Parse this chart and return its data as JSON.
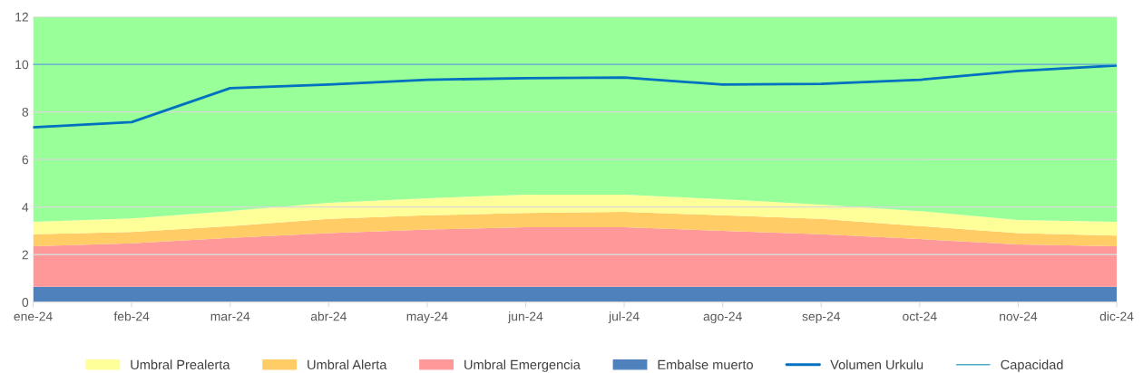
{
  "chart_data": {
    "type": "area",
    "stacked": true,
    "categories": [
      "ene-24",
      "feb-24",
      "mar-24",
      "abr-24",
      "may-24",
      "jun-24",
      "jul-24",
      "ago-24",
      "sep-24",
      "oct-24",
      "nov-24",
      "dic-24"
    ],
    "series": [
      {
        "name": "Embalse muerto",
        "color": "#4f81bd",
        "values": [
          0.65,
          0.65,
          0.65,
          0.65,
          0.65,
          0.65,
          0.65,
          0.65,
          0.65,
          0.65,
          0.65,
          0.65
        ]
      },
      {
        "name": "Umbral Emergencia",
        "color": "#ff9999",
        "values": [
          1.7,
          1.82,
          2.05,
          2.25,
          2.4,
          2.5,
          2.5,
          2.35,
          2.2,
          2.0,
          1.78,
          1.7
        ]
      },
      {
        "name": "Umbral Alerta",
        "color": "#ffcc66",
        "values": [
          0.5,
          0.48,
          0.5,
          0.6,
          0.6,
          0.6,
          0.65,
          0.65,
          0.65,
          0.55,
          0.47,
          0.45
        ]
      },
      {
        "name": "Umbral Prealerta",
        "color": "#ffff99",
        "values": [
          0.53,
          0.57,
          0.63,
          0.68,
          0.72,
          0.77,
          0.72,
          0.68,
          0.6,
          0.63,
          0.55,
          0.58
        ]
      },
      {
        "color": "#99ff99",
        "values": [
          8.62,
          8.48,
          8.17,
          7.82,
          7.63,
          7.48,
          7.48,
          7.67,
          7.9,
          8.17,
          8.55,
          8.62
        ]
      },
      {
        "name": "Volumen Urkulu",
        "type": "line",
        "color": "#0070c0",
        "values": [
          7.35,
          7.57,
          9.0,
          9.15,
          9.35,
          9.42,
          9.45,
          9.15,
          9.18,
          9.35,
          9.72,
          9.95
        ]
      },
      {
        "name": "Capacidad",
        "type": "line",
        "color": "#4bacc6",
        "values": [
          10,
          10,
          10,
          10,
          10,
          10,
          10,
          10,
          10,
          10,
          10,
          10
        ]
      }
    ],
    "ylim": [
      0,
      12
    ],
    "yticks": [
      0,
      2,
      4,
      6,
      8,
      10,
      12
    ],
    "grid": "y",
    "legend": "bottom",
    "marker": "none",
    "line_style": "solid"
  }
}
